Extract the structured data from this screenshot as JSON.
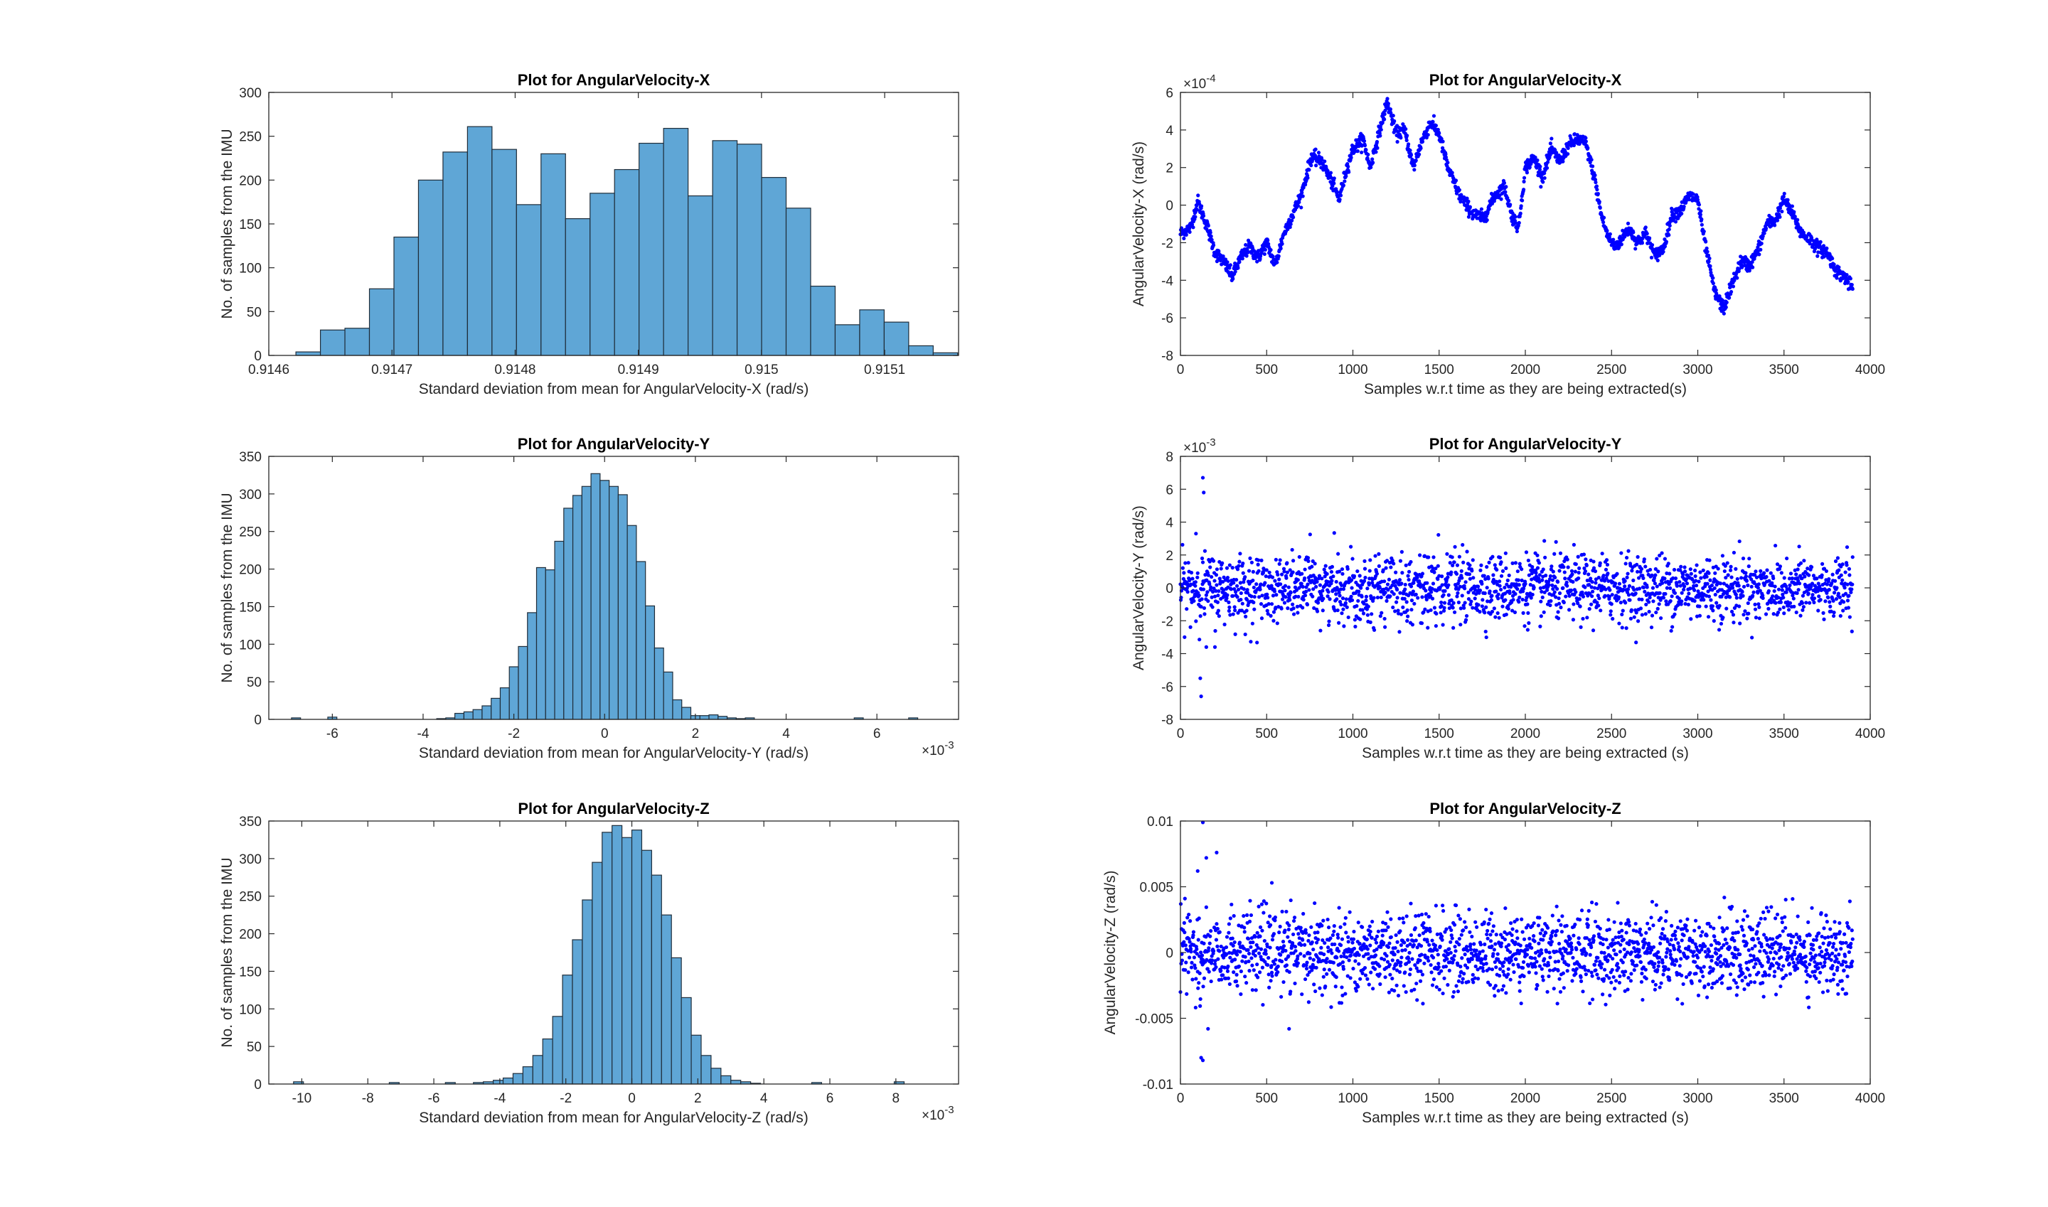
{
  "figure": {
    "background": "#ffffff",
    "hist_color": "#5fa6d6",
    "hist_edge": "#1f2d3a",
    "scatter_color": "#0000ff"
  },
  "chart_data": [
    {
      "type": "bar",
      "title": "Plot for AngularVelocity-X",
      "xlabel": "Standard deviation from mean for AngularVelocity-X (rad/s)",
      "ylabel": "No. of samples from the IMU",
      "xlim": [
        0.9146,
        0.91516
      ],
      "ylim": [
        0,
        300
      ],
      "xticks": [
        0.9146,
        0.9147,
        0.9148,
        0.9149,
        0.915,
        0.9151
      ],
      "xtick_labels": [
        "0.9146",
        "0.9147",
        "0.9148",
        "0.9149",
        "0.915",
        "0.9151"
      ],
      "yticks": [
        0,
        50,
        100,
        150,
        200,
        250,
        300
      ],
      "exponent": "",
      "bin_start": 0.914622,
      "bin_width": 1.99e-05,
      "values": [
        4,
        29,
        31,
        76,
        135,
        200,
        232,
        261,
        235,
        172,
        230,
        156,
        185,
        212,
        242,
        259,
        182,
        245,
        241,
        203,
        168,
        79,
        35,
        52,
        38,
        11,
        3
      ]
    },
    {
      "type": "scatter",
      "title": "Plot for AngularVelocity-X",
      "xlabel": "Samples w.r.t time as they are being extracted(s)",
      "ylabel": "AngularVelocity-X (rad/s)",
      "xlim": [
        0,
        4000
      ],
      "ylim": [
        -8,
        6
      ],
      "xticks": [
        0,
        500,
        1000,
        1500,
        2000,
        2500,
        3000,
        3500,
        4000
      ],
      "yticks": [
        -8,
        -6,
        -4,
        -2,
        0,
        2,
        4,
        6
      ],
      "exponent": "×10^-4",
      "n": 3900,
      "mode": "walk",
      "anchors": [
        [
          0,
          -1.5
        ],
        [
          60,
          -1.2
        ],
        [
          100,
          0.2
        ],
        [
          150,
          -1
        ],
        [
          200,
          -2.5
        ],
        [
          250,
          -3
        ],
        [
          300,
          -3.8
        ],
        [
          350,
          -2.8
        ],
        [
          400,
          -2.2
        ],
        [
          450,
          -2.8
        ],
        [
          500,
          -2
        ],
        [
          550,
          -3.2
        ],
        [
          600,
          -1.5
        ],
        [
          700,
          0.5
        ],
        [
          760,
          2.6
        ],
        [
          820,
          2.3
        ],
        [
          880,
          1.2
        ],
        [
          920,
          0.3
        ],
        [
          960,
          1.8
        ],
        [
          1000,
          3
        ],
        [
          1060,
          3.5
        ],
        [
          1100,
          2
        ],
        [
          1150,
          3.8
        ],
        [
          1200,
          5.5
        ],
        [
          1250,
          3.8
        ],
        [
          1300,
          4
        ],
        [
          1350,
          2
        ],
        [
          1400,
          3.4
        ],
        [
          1450,
          4.4
        ],
        [
          1500,
          3.8
        ],
        [
          1550,
          2
        ],
        [
          1620,
          0.5
        ],
        [
          1700,
          -0.5
        ],
        [
          1760,
          -0.7
        ],
        [
          1820,
          0.5
        ],
        [
          1880,
          1
        ],
        [
          1920,
          -0.5
        ],
        [
          1960,
          -1.2
        ],
        [
          2000,
          2
        ],
        [
          2050,
          2.5
        ],
        [
          2100,
          1.5
        ],
        [
          2150,
          3
        ],
        [
          2200,
          2.3
        ],
        [
          2250,
          3.2
        ],
        [
          2300,
          3.5
        ],
        [
          2350,
          3.3
        ],
        [
          2400,
          1.5
        ],
        [
          2440,
          -0.5
        ],
        [
          2480,
          -1.7
        ],
        [
          2520,
          -2.2
        ],
        [
          2560,
          -1.8
        ],
        [
          2600,
          -1.2
        ],
        [
          2650,
          -2
        ],
        [
          2700,
          -1.5
        ],
        [
          2750,
          -2.7
        ],
        [
          2800,
          -2.3
        ],
        [
          2850,
          -0.5
        ],
        [
          2900,
          -0.3
        ],
        [
          2950,
          0.5
        ],
        [
          3000,
          0.3
        ],
        [
          3040,
          -2
        ],
        [
          3100,
          -4.7
        ],
        [
          3150,
          -5.5
        ],
        [
          3200,
          -4.2
        ],
        [
          3250,
          -3
        ],
        [
          3300,
          -3.2
        ],
        [
          3350,
          -2.4
        ],
        [
          3400,
          -1
        ],
        [
          3450,
          -0.8
        ],
        [
          3500,
          0.3
        ],
        [
          3550,
          -0.5
        ],
        [
          3600,
          -1.5
        ],
        [
          3650,
          -1.8
        ],
        [
          3700,
          -2.3
        ],
        [
          3750,
          -2.5
        ],
        [
          3800,
          -3.5
        ],
        [
          3850,
          -3.8
        ],
        [
          3900,
          -4.5
        ]
      ]
    },
    {
      "type": "bar",
      "title": "Plot for AngularVelocity-Y",
      "xlabel": "Standard deviation from mean for AngularVelocity-Y (rad/s)",
      "ylabel": "No. of samples from the IMU",
      "xlim": [
        -7.4,
        7.8
      ],
      "ylim": [
        0,
        350
      ],
      "xticks": [
        -6,
        -4,
        -2,
        0,
        2,
        4,
        6
      ],
      "xtick_labels": [
        "-6",
        "-4",
        "-2",
        "0",
        "2",
        "4",
        "6"
      ],
      "yticks": [
        0,
        50,
        100,
        150,
        200,
        250,
        300,
        350
      ],
      "exponent": "×10^-3",
      "bin_start": -3.7,
      "bin_width": 0.2,
      "values": [
        1,
        2,
        8,
        10,
        13,
        18,
        28,
        42,
        70,
        97,
        142,
        202,
        199,
        237,
        281,
        298,
        310,
        327,
        318,
        310,
        299,
        258,
        210,
        151,
        95,
        63,
        26,
        16,
        5,
        5,
        6,
        4,
        2,
        1,
        2
      ],
      "outliers": [
        [
          -6.8,
          2
        ],
        [
          -6.0,
          3
        ],
        [
          5.6,
          2
        ],
        [
          6.8,
          2
        ]
      ]
    },
    {
      "type": "scatter",
      "title": "Plot for AngularVelocity-Y",
      "xlabel": "Samples w.r.t time as they are being extracted (s)",
      "ylabel": "AngularVelocity-Y (rad/s)",
      "xlim": [
        0,
        4000
      ],
      "ylim": [
        -8,
        8
      ],
      "xticks": [
        0,
        500,
        1000,
        1500,
        2000,
        2500,
        3000,
        3500,
        4000
      ],
      "yticks": [
        -8,
        -6,
        -4,
        -2,
        0,
        2,
        4,
        6,
        8
      ],
      "exponent": "×10^-3",
      "n": 3900,
      "mode": "noise",
      "sigma": 1.0,
      "outlier_points": [
        [
          130,
          6.7
        ],
        [
          135,
          5.8
        ],
        [
          115,
          -5.5
        ],
        [
          120,
          -6.6
        ],
        [
          90,
          3.3
        ],
        [
          150,
          -3.6
        ],
        [
          200,
          -3.6
        ]
      ]
    },
    {
      "type": "bar",
      "title": "Plot for AngularVelocity-Z",
      "xlabel": "Standard deviation from mean for AngularVelocity-Z (rad/s)",
      "ylabel": "No. of samples from the IMU",
      "xlim": [
        -11,
        9.9
      ],
      "ylim": [
        0,
        350
      ],
      "xticks": [
        -10,
        -8,
        -6,
        -4,
        -2,
        0,
        2,
        4,
        6,
        8
      ],
      "xtick_labels": [
        "-10",
        "-8",
        "-6",
        "-4",
        "-2",
        "0",
        "2",
        "4",
        "6",
        "8"
      ],
      "yticks": [
        0,
        50,
        100,
        150,
        200,
        250,
        300,
        350
      ],
      "exponent": "×10^-3",
      "bin_start": -4.8,
      "bin_width": 0.3,
      "values": [
        2,
        3,
        5,
        8,
        14,
        23,
        38,
        60,
        90,
        145,
        192,
        245,
        295,
        335,
        344,
        328,
        338,
        311,
        278,
        225,
        168,
        115,
        65,
        38,
        21,
        11,
        5,
        3,
        1
      ],
      "outliers": [
        [
          -10.1,
          3
        ],
        [
          -7.2,
          2
        ],
        [
          -5.5,
          2
        ],
        [
          5.6,
          2
        ],
        [
          8.1,
          3
        ]
      ]
    },
    {
      "type": "scatter",
      "title": "Plot for AngularVelocity-Z",
      "xlabel": "Samples w.r.t time as they are being extracted (s)",
      "ylabel": "AngularVelocity-Z (rad/s)",
      "xlim": [
        0,
        4000
      ],
      "ylim": [
        -0.01,
        0.01
      ],
      "xticks": [
        0,
        500,
        1000,
        1500,
        2000,
        2500,
        3000,
        3500,
        4000
      ],
      "yticks": [
        -0.01,
        -0.005,
        0,
        0.005,
        0.01
      ],
      "ytick_labels": [
        "-0.01",
        "-0.005",
        "0",
        "0.005",
        "0.01"
      ],
      "exponent": "",
      "n": 3900,
      "mode": "noise",
      "sigma": 0.0015,
      "outlier_points": [
        [
          130,
          0.0099
        ],
        [
          100,
          0.0062
        ],
        [
          150,
          0.0072
        ],
        [
          210,
          0.0076
        ],
        [
          120,
          -0.008
        ],
        [
          130,
          -0.0082
        ],
        [
          160,
          -0.0058
        ],
        [
          630,
          -0.0058
        ],
        [
          530,
          0.0053
        ]
      ]
    }
  ]
}
